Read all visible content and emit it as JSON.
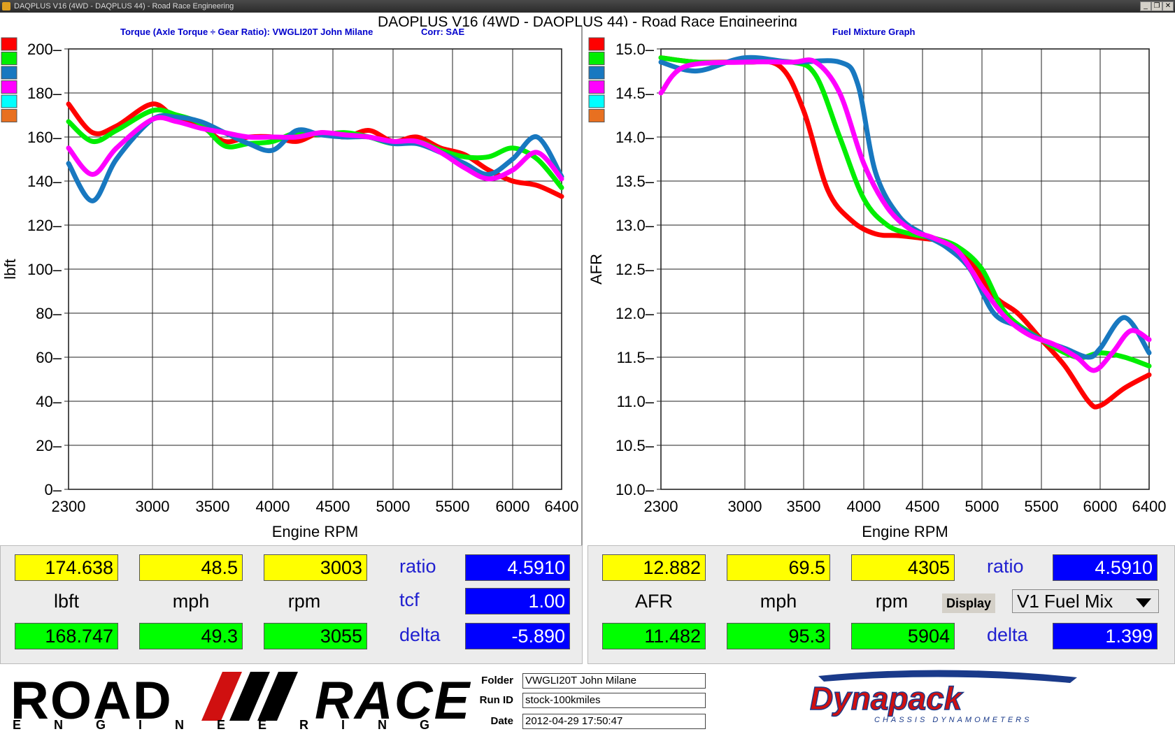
{
  "window": {
    "title": "DAQPLUS V16 (4WD - DAQPLUS 44) - Road Race Engineering",
    "main_title": "DAQPLUS V16 (4WD - DAQPLUS 44) - Road Race Engineering",
    "minimize": "_",
    "restore": "❐",
    "close": "✕"
  },
  "colors": {
    "run1": "#ff0000",
    "run2": "#00ee00",
    "run3": "#1878c0",
    "run4": "#ff00ff",
    "run5": "#00ffff",
    "run6": "#e87020",
    "title_blue": "#0000cc"
  },
  "legend_swatches": [
    "#ff0000",
    "#00ee00",
    "#1878c0",
    "#ff00ff",
    "#00ffff",
    "#e87020"
  ],
  "left_chart": {
    "header_left": "Torque (Axle Torque ÷ Gear Ratio): VWGLI20T John Milane",
    "header_right": "Corr: SAE"
  },
  "right_chart": {
    "header_left": "Fuel Mixture Graph",
    "header_right": ""
  },
  "chart_data": [
    {
      "type": "line",
      "title": "Torque (Axle Torque ÷ Gear Ratio): VWGLI20T John Milane",
      "xlabel": "Engine RPM",
      "ylabel": "lbft",
      "xlim": [
        2300,
        6400
      ],
      "ylim": [
        0,
        200
      ],
      "x_ticks": [
        2300,
        3000,
        3500,
        4000,
        4500,
        5000,
        5500,
        6000,
        6400
      ],
      "y_ticks": [
        0,
        20,
        40,
        60,
        80,
        100,
        120,
        140,
        160,
        180,
        200
      ],
      "grid": true,
      "series": [
        {
          "color": "#ff0000",
          "points": [
            [
              2300,
              175
            ],
            [
              2500,
              162
            ],
            [
              2700,
              165
            ],
            [
              3000,
              175
            ],
            [
              3200,
              168
            ],
            [
              3400,
              165
            ],
            [
              3600,
              158
            ],
            [
              3800,
              160
            ],
            [
              4000,
              160
            ],
            [
              4200,
              158
            ],
            [
              4400,
              162
            ],
            [
              4600,
              160
            ],
            [
              4800,
              163
            ],
            [
              5000,
              158
            ],
            [
              5200,
              160
            ],
            [
              5400,
              155
            ],
            [
              5600,
              152
            ],
            [
              5800,
              145
            ],
            [
              6000,
              140
            ],
            [
              6200,
              138
            ],
            [
              6400,
              133
            ]
          ]
        },
        {
          "color": "#00ee00",
          "points": [
            [
              2300,
              167
            ],
            [
              2500,
              158
            ],
            [
              2700,
              163
            ],
            [
              3000,
              172
            ],
            [
              3200,
              170
            ],
            [
              3400,
              166
            ],
            [
              3600,
              156
            ],
            [
              3800,
              157
            ],
            [
              4000,
              158
            ],
            [
              4200,
              162
            ],
            [
              4400,
              161
            ],
            [
              4600,
              162
            ],
            [
              4800,
              160
            ],
            [
              5000,
              157
            ],
            [
              5200,
              158
            ],
            [
              5400,
              154
            ],
            [
              5600,
              151
            ],
            [
              5800,
              151
            ],
            [
              6000,
              155
            ],
            [
              6200,
              150
            ],
            [
              6400,
              137
            ]
          ]
        },
        {
          "color": "#1878c0",
          "points": [
            [
              2300,
              148
            ],
            [
              2500,
              131
            ],
            [
              2700,
              150
            ],
            [
              3000,
              168
            ],
            [
              3200,
              169
            ],
            [
              3400,
              167
            ],
            [
              3600,
              162
            ],
            [
              3800,
              157
            ],
            [
              4000,
              154
            ],
            [
              4200,
              163
            ],
            [
              4400,
              161
            ],
            [
              4600,
              160
            ],
            [
              4800,
              160
            ],
            [
              5000,
              157
            ],
            [
              5200,
              157
            ],
            [
              5400,
              153
            ],
            [
              5600,
              148
            ],
            [
              5800,
              143
            ],
            [
              6000,
              150
            ],
            [
              6200,
              160
            ],
            [
              6400,
              142
            ]
          ]
        },
        {
          "color": "#ff00ff",
          "points": [
            [
              2300,
              155
            ],
            [
              2500,
              143
            ],
            [
              2700,
              155
            ],
            [
              3000,
              168
            ],
            [
              3200,
              167
            ],
            [
              3400,
              164
            ],
            [
              3600,
              162
            ],
            [
              3800,
              160
            ],
            [
              4000,
              160
            ],
            [
              4200,
              160
            ],
            [
              4400,
              162
            ],
            [
              4600,
              161
            ],
            [
              4800,
              160
            ],
            [
              5000,
              158
            ],
            [
              5200,
              158
            ],
            [
              5400,
              153
            ],
            [
              5600,
              146
            ],
            [
              5800,
              141
            ],
            [
              6000,
              145
            ],
            [
              6200,
              153
            ],
            [
              6400,
              141
            ]
          ]
        }
      ]
    },
    {
      "type": "line",
      "title": "Fuel Mixture Graph",
      "xlabel": "Engine RPM",
      "ylabel": "AFR",
      "xlim": [
        2300,
        6400
      ],
      "ylim": [
        10.0,
        15.0
      ],
      "x_ticks": [
        2300,
        3000,
        3500,
        4000,
        4500,
        5000,
        5500,
        6000,
        6400
      ],
      "y_ticks": [
        10.0,
        10.5,
        11.0,
        11.5,
        12.0,
        12.5,
        13.0,
        13.5,
        14.0,
        14.5,
        15.0
      ],
      "grid": true,
      "series": [
        {
          "color": "#ff0000",
          "points": [
            [
              2300,
              14.9
            ],
            [
              2600,
              14.85
            ],
            [
              3000,
              14.85
            ],
            [
              3300,
              14.8
            ],
            [
              3500,
              14.3
            ],
            [
              3700,
              13.4
            ],
            [
              3900,
              13.05
            ],
            [
              4100,
              12.9
            ],
            [
              4300,
              12.88
            ],
            [
              4500,
              12.85
            ],
            [
              4700,
              12.8
            ],
            [
              4900,
              12.6
            ],
            [
              5100,
              12.2
            ],
            [
              5300,
              12.0
            ],
            [
              5500,
              11.7
            ],
            [
              5700,
              11.4
            ],
            [
              5900,
              11.0
            ],
            [
              6000,
              10.95
            ],
            [
              6200,
              11.15
            ],
            [
              6400,
              11.3
            ]
          ]
        },
        {
          "color": "#00ee00",
          "points": [
            [
              2300,
              14.9
            ],
            [
              2600,
              14.85
            ],
            [
              3000,
              14.85
            ],
            [
              3400,
              14.85
            ],
            [
              3600,
              14.7
            ],
            [
              3800,
              14.0
            ],
            [
              4000,
              13.3
            ],
            [
              4200,
              13.0
            ],
            [
              4400,
              12.9
            ],
            [
              4600,
              12.85
            ],
            [
              4800,
              12.75
            ],
            [
              5000,
              12.5
            ],
            [
              5200,
              12.0
            ],
            [
              5500,
              11.7
            ],
            [
              5800,
              11.5
            ],
            [
              6000,
              11.55
            ],
            [
              6200,
              11.5
            ],
            [
              6400,
              11.4
            ]
          ]
        },
        {
          "color": "#1878c0",
          "points": [
            [
              2300,
              14.85
            ],
            [
              2600,
              14.75
            ],
            [
              3000,
              14.9
            ],
            [
              3400,
              14.85
            ],
            [
              3800,
              14.85
            ],
            [
              3950,
              14.6
            ],
            [
              4100,
              13.6
            ],
            [
              4300,
              13.1
            ],
            [
              4500,
              12.9
            ],
            [
              4700,
              12.75
            ],
            [
              4900,
              12.5
            ],
            [
              5100,
              12.0
            ],
            [
              5300,
              11.85
            ],
            [
              5500,
              11.7
            ],
            [
              5700,
              11.6
            ],
            [
              5900,
              11.5
            ],
            [
              6000,
              11.6
            ],
            [
              6200,
              11.95
            ],
            [
              6400,
              11.55
            ]
          ]
        },
        {
          "color": "#ff00ff",
          "points": [
            [
              2300,
              14.5
            ],
            [
              2500,
              14.8
            ],
            [
              3000,
              14.85
            ],
            [
              3400,
              14.85
            ],
            [
              3600,
              14.85
            ],
            [
              3800,
              14.5
            ],
            [
              4000,
              13.7
            ],
            [
              4200,
              13.2
            ],
            [
              4400,
              12.95
            ],
            [
              4600,
              12.85
            ],
            [
              4800,
              12.7
            ],
            [
              5000,
              12.3
            ],
            [
              5200,
              11.95
            ],
            [
              5400,
              11.75
            ],
            [
              5600,
              11.65
            ],
            [
              5800,
              11.5
            ],
            [
              5950,
              11.35
            ],
            [
              6100,
              11.55
            ],
            [
              6250,
              11.8
            ],
            [
              6400,
              11.7
            ]
          ]
        }
      ]
    }
  ],
  "left_panel": {
    "val1": "174.638",
    "val2": "48.5",
    "val3": "3003",
    "unit1": "lbft",
    "unit2": "mph",
    "unit3": "rpm",
    "val4": "168.747",
    "val5": "49.3",
    "val6": "3055",
    "ratio_label": "ratio",
    "ratio_value": "4.5910",
    "tcf_label": "tcf",
    "tcf_value": "1.00",
    "delta_label": "delta",
    "delta_value": "-5.890"
  },
  "right_panel": {
    "val1": "12.882",
    "val2": "69.5",
    "val3": "4305",
    "unit1": "AFR",
    "unit2": "mph",
    "unit3": "rpm",
    "val4": "11.482",
    "val5": "95.3",
    "val6": "5904",
    "ratio_label": "ratio",
    "ratio_value": "4.5910",
    "display_label": "Display",
    "display_value": "V1 Fuel Mix",
    "delta_label": "delta",
    "delta_value": "1.399"
  },
  "footer": {
    "logo_road": "ROAD",
    "logo_race": "RACE",
    "logo_engineering": "ENGINEERING",
    "folder_label": "Folder",
    "folder_value": "VWGLI20T John Milane",
    "runid_label": "Run ID",
    "runid_value": "stock-100kmiles",
    "date_label": "Date",
    "date_value": "2012-04-29 17:50:47",
    "dynapack": "Dynapack",
    "dynapack_sub": "CHASSIS DYNAMOMETERS"
  }
}
